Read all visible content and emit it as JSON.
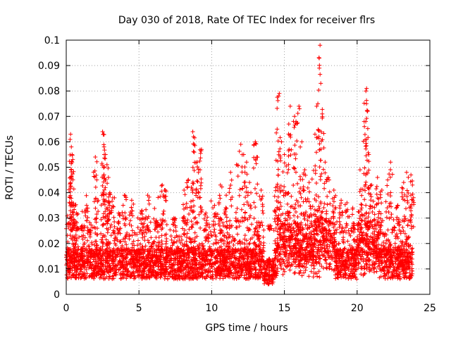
{
  "chart_data": {
    "type": "scatter",
    "title": "Day 030 of 2018, Rate Of TEC Index for receiver flrs",
    "xlabel": "GPS time / hours",
    "ylabel": "ROTI / TECUs",
    "xlim": [
      0,
      25
    ],
    "ylim": [
      0,
      0.1
    ],
    "xticks": [
      0,
      5,
      10,
      15,
      20,
      25
    ],
    "yticks": [
      0,
      0.01,
      0.02,
      0.03,
      0.04,
      0.05,
      0.06,
      0.07,
      0.08,
      0.09,
      0.1
    ],
    "xtick_labels": [
      "0",
      "5",
      "10",
      "15",
      "20",
      "25"
    ],
    "ytick_labels": [
      "0",
      "0.01",
      "0.02",
      "0.03",
      "0.04",
      "0.05",
      "0.06",
      "0.07",
      "0.08",
      "0.09",
      "0.1"
    ],
    "grid": true,
    "marker": "+",
    "marker_color": "#ff0000",
    "series": [
      {
        "name": "ROTI",
        "points": [
          [
            0.3,
            0.063
          ],
          [
            0.35,
            0.058
          ],
          [
            0.4,
            0.055
          ],
          [
            0.35,
            0.049
          ],
          [
            0.3,
            0.044
          ],
          [
            0.4,
            0.052
          ],
          [
            0.5,
            0.035
          ],
          [
            0.7,
            0.032
          ],
          [
            1.1,
            0.027
          ],
          [
            1.4,
            0.035
          ],
          [
            1.6,
            0.025
          ],
          [
            2.0,
            0.054
          ],
          [
            2.1,
            0.045
          ],
          [
            2.5,
            0.064
          ],
          [
            2.55,
            0.063
          ],
          [
            2.6,
            0.058
          ],
          [
            2.7,
            0.055
          ],
          [
            2.8,
            0.051
          ],
          [
            2.9,
            0.046
          ],
          [
            3.0,
            0.04
          ],
          [
            3.2,
            0.038
          ],
          [
            3.6,
            0.032
          ],
          [
            4.0,
            0.039
          ],
          [
            4.5,
            0.037
          ],
          [
            5.2,
            0.033
          ],
          [
            5.6,
            0.039
          ],
          [
            6.2,
            0.029
          ],
          [
            6.6,
            0.043
          ],
          [
            6.8,
            0.041
          ],
          [
            7.4,
            0.03
          ],
          [
            8.1,
            0.041
          ],
          [
            8.4,
            0.045
          ],
          [
            8.7,
            0.064
          ],
          [
            8.75,
            0.062
          ],
          [
            8.8,
            0.059
          ],
          [
            9.0,
            0.052
          ],
          [
            9.2,
            0.049
          ],
          [
            9.3,
            0.057
          ],
          [
            9.6,
            0.032
          ],
          [
            10.2,
            0.035
          ],
          [
            10.6,
            0.043
          ],
          [
            11.0,
            0.039
          ],
          [
            11.3,
            0.048
          ],
          [
            11.7,
            0.051
          ],
          [
            12.0,
            0.059
          ],
          [
            12.2,
            0.055
          ],
          [
            12.4,
            0.052
          ],
          [
            12.6,
            0.044
          ],
          [
            13.0,
            0.06
          ],
          [
            13.1,
            0.054
          ],
          [
            13.4,
            0.041
          ],
          [
            14.0,
            0.027
          ],
          [
            14.4,
            0.042
          ],
          [
            14.5,
            0.065
          ],
          [
            14.6,
            0.078
          ],
          [
            14.65,
            0.079
          ],
          [
            14.8,
            0.06
          ],
          [
            15.0,
            0.055
          ],
          [
            15.3,
            0.067
          ],
          [
            15.4,
            0.074
          ],
          [
            15.7,
            0.07
          ],
          [
            15.8,
            0.068
          ],
          [
            16.0,
            0.074
          ],
          [
            16.2,
            0.06
          ],
          [
            16.4,
            0.049
          ],
          [
            16.7,
            0.044
          ],
          [
            17.1,
            0.063
          ],
          [
            17.3,
            0.075
          ],
          [
            17.4,
            0.089
          ],
          [
            17.45,
            0.098
          ],
          [
            17.5,
            0.083
          ],
          [
            17.6,
            0.071
          ],
          [
            17.8,
            0.052
          ],
          [
            18.0,
            0.046
          ],
          [
            18.4,
            0.041
          ],
          [
            18.9,
            0.037
          ],
          [
            19.3,
            0.036
          ],
          [
            19.7,
            0.034
          ],
          [
            20.2,
            0.049
          ],
          [
            20.5,
            0.066
          ],
          [
            20.6,
            0.08
          ],
          [
            20.65,
            0.081
          ],
          [
            20.7,
            0.072
          ],
          [
            20.8,
            0.055
          ],
          [
            21.0,
            0.043
          ],
          [
            21.4,
            0.046
          ],
          [
            21.7,
            0.041
          ],
          [
            22.1,
            0.045
          ],
          [
            22.3,
            0.052
          ],
          [
            22.8,
            0.035
          ],
          [
            23.2,
            0.044
          ],
          [
            23.4,
            0.048
          ],
          [
            23.7,
            0.047
          ],
          [
            23.8,
            0.043
          ]
        ]
      }
    ],
    "noise_band_hint": "dense cloud of points between roughly 0.003 and 0.03 across 0 to 23.8 hours"
  }
}
